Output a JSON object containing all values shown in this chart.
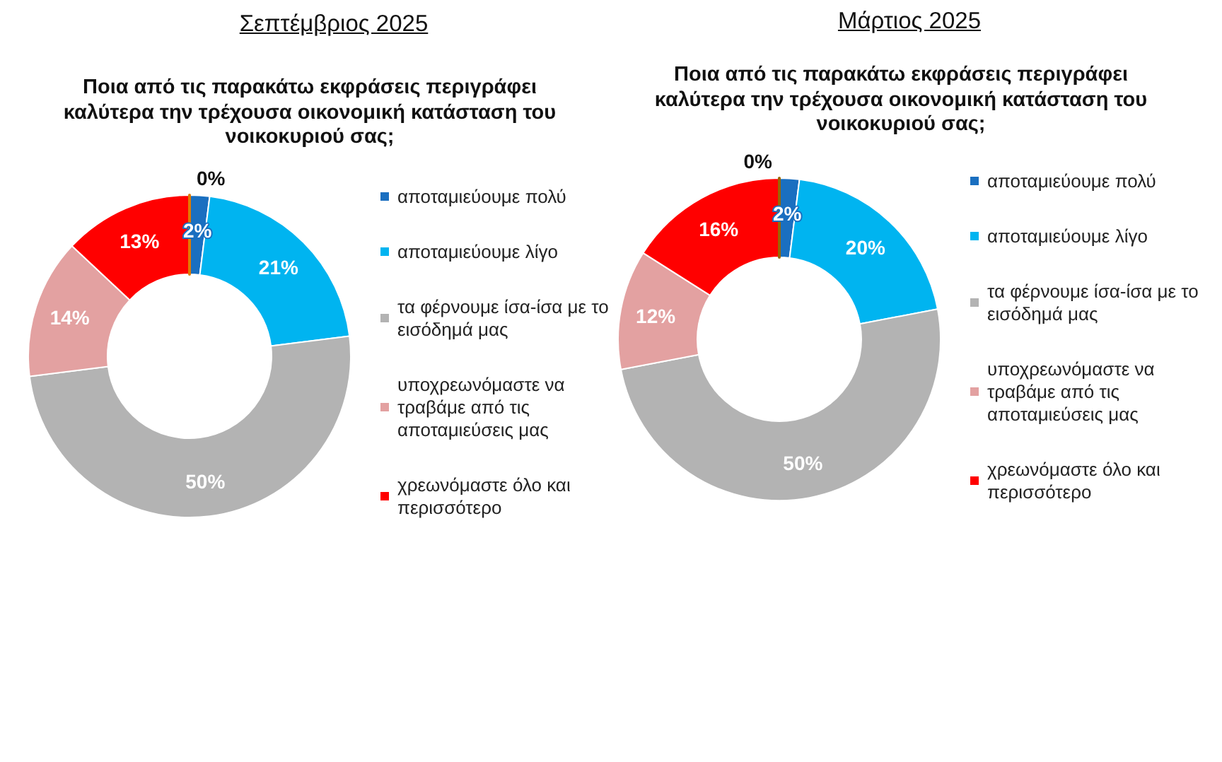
{
  "chart_data": [
    {
      "type": "donut",
      "title": "Σεπτέμβριος 2025",
      "subtitle": "Ποια από τις παρακάτω εκφράσεις περιγράφει καλύτερα την τρέχουσα οικονομική κατάσταση του νοικοκυριού σας;",
      "categories": [
        "αποταμιεύουμε πολύ",
        "αποταμιεύουμε λίγο",
        "τα φέρνουμε ίσα-ίσα με το εισόδημά μας",
        "υποχρεωνόμαστε να τραβάμε από τις αποταμιεύσεις μας",
        "χρεωνόμαστε όλο και περισσότερο",
        null
      ],
      "values": [
        2,
        21,
        50,
        14,
        13,
        0
      ],
      "value_labels": [
        "2%",
        "21%",
        "50%",
        "14%",
        "13%",
        "0%"
      ],
      "colors": [
        "#1a6fc0",
        "#00b4f0",
        "#b3b3b3",
        "#e3a1a1",
        "#ff0000",
        "#e07b00"
      ],
      "legend": "right"
    },
    {
      "type": "donut",
      "title": "Μάρτιος 2025",
      "subtitle": "Ποια από τις παρακάτω εκφράσεις περιγράφει καλύτερα την τρέχουσα οικονομική κατάσταση του νοικοκυριού σας;",
      "categories": [
        "αποταμιεύουμε πολύ",
        "αποταμιεύουμε λίγο",
        "τα φέρνουμε ίσα-ίσα με το εισόδημά μας",
        "υποχρεωνόμαστε να τραβάμε από τις αποταμιεύσεις μας",
        "χρεωνόμαστε όλο και περισσότερο",
        null
      ],
      "values": [
        2,
        20,
        50,
        12,
        16,
        0
      ],
      "value_labels": [
        "2%",
        "20%",
        "50%",
        "12%",
        "16%",
        "0%"
      ],
      "colors": [
        "#1a6fc0",
        "#00b4f0",
        "#b3b3b3",
        "#e3a1a1",
        "#ff0000",
        "#996600"
      ],
      "legend": "right"
    }
  ]
}
